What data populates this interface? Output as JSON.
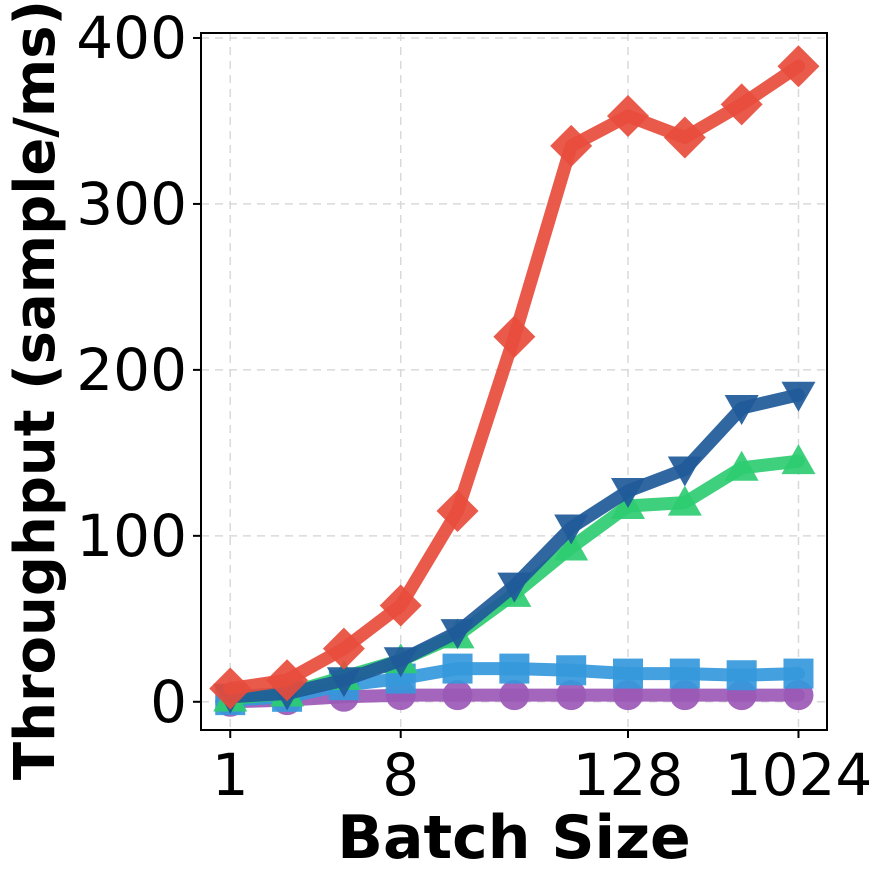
{
  "chart_data": {
    "type": "line",
    "title": "",
    "xlabel": "Batch Size",
    "ylabel": "Throughput (sample/ms)",
    "x_scale": "log2",
    "x": [
      1,
      2,
      4,
      8,
      16,
      32,
      64,
      128,
      256,
      512,
      1024
    ],
    "x_ticks": [
      1,
      8,
      128,
      1024
    ],
    "x_tick_labels": [
      "1",
      "8",
      "128",
      "1024"
    ],
    "xlim": [
      0.7,
      1450
    ],
    "ylim": [
      -17,
      403
    ],
    "y_ticks": [
      0,
      100,
      200,
      300,
      400
    ],
    "y_tick_labels": [
      "0",
      "100",
      "200",
      "300",
      "400"
    ],
    "grid": true,
    "legend": "none",
    "series": [
      {
        "color": "#e74c3c",
        "marker": "diamond",
        "values": [
          8,
          13,
          32,
          58,
          115,
          220,
          335,
          353,
          340,
          360,
          383
        ]
      },
      {
        "color": "#1f5a99",
        "marker": "triangle-down",
        "values": [
          3,
          5,
          13,
          25,
          42,
          70,
          105,
          127,
          140,
          177,
          185
        ]
      },
      {
        "color": "#2ecc71",
        "marker": "triangle-up",
        "values": [
          2,
          5,
          15,
          25,
          40,
          65,
          93,
          118,
          120,
          141,
          145
        ]
      },
      {
        "color": "#3498db",
        "marker": "square",
        "values": [
          1,
          3,
          10,
          14,
          20,
          20,
          19,
          17,
          17,
          16,
          17
        ]
      },
      {
        "color": "#9b59b6",
        "marker": "circle",
        "values": [
          0,
          1,
          3,
          4,
          4,
          4,
          4,
          4,
          4,
          4,
          4
        ]
      }
    ]
  }
}
